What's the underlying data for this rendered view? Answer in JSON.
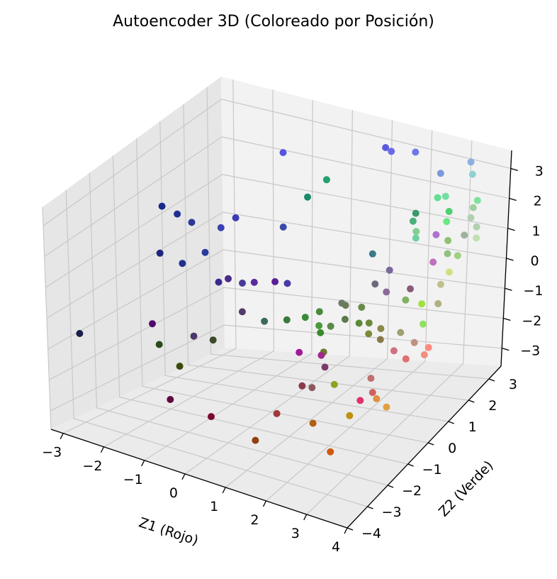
{
  "chart_data": {
    "type": "scatter",
    "title": "Autoencoder 3D (Coloreado por Posición)",
    "xlabel": "Z1 (Rojo)",
    "ylabel": "Z2 (Verde)",
    "zlabel": "",
    "xlim": [
      -3.3,
      4.0
    ],
    "ylim": [
      -4.0,
      3.6
    ],
    "zlim": [
      -3.6,
      3.6
    ],
    "xticks": [
      "−3",
      "−2",
      "−1",
      "0",
      "1",
      "2",
      "3",
      "4"
    ],
    "yticks": [
      "−4",
      "−3",
      "−2",
      "−1",
      "0",
      "1",
      "2",
      "3"
    ],
    "zticks": [
      "−3",
      "−2",
      "−1",
      "0",
      "1",
      "2",
      "3"
    ],
    "grid": true,
    "points": [
      {
        "x": -2.8,
        "y": -3.5,
        "z": -0.5,
        "color": "#1a1f4a"
      },
      {
        "x": -3.0,
        "y": 0.5,
        "z": 1.5,
        "color": "#1a2a8a"
      },
      {
        "x": -2.8,
        "y": 0.8,
        "z": 1.2,
        "color": "#1f2f90"
      },
      {
        "x": -2.9,
        "y": 0.2,
        "z": 0.3,
        "color": "#1c2680"
      },
      {
        "x": -2.5,
        "y": 0.9,
        "z": 1.0,
        "color": "#2a3a96"
      },
      {
        "x": -2.4,
        "y": 0.3,
        "z": 0.1,
        "color": "#203090"
      },
      {
        "x": -2.0,
        "y": 1.3,
        "z": 0.8,
        "color": "#3a40b0"
      },
      {
        "x": -1.8,
        "y": 1.6,
        "z": 1.0,
        "color": "#3c3cb5"
      },
      {
        "x": -2.0,
        "y": 0.6,
        "z": 0.4,
        "color": "#2a3a9a"
      },
      {
        "x": -1.5,
        "y": 0.3,
        "z": -0.2,
        "color": "#3a2a90"
      },
      {
        "x": -1.6,
        "y": 0.9,
        "z": -0.4,
        "color": "#4a2a8c"
      },
      {
        "x": -1.3,
        "y": 1.0,
        "z": -0.5,
        "color": "#4a3a9a"
      },
      {
        "x": -1.0,
        "y": 1.0,
        "z": -0.4,
        "color": "#5a2aa0"
      },
      {
        "x": -0.7,
        "y": 1.4,
        "z": -0.5,
        "color": "#5a1f96"
      },
      {
        "x": -0.5,
        "y": 1.6,
        "z": -0.6,
        "color": "#4a3aa8"
      },
      {
        "x": -1.4,
        "y": 3.0,
        "z": 2.3,
        "color": "#5555e0"
      },
      {
        "x": -1.0,
        "y": 2.3,
        "z": 0.6,
        "color": "#3a4aa8"
      },
      {
        "x": -0.5,
        "y": 2.5,
        "z": 1.5,
        "color": "#1a8a6a"
      },
      {
        "x": -0.3,
        "y": 3.0,
        "z": 1.8,
        "color": "#22a070"
      },
      {
        "x": -1.4,
        "y": -1.0,
        "z": -1.2,
        "color": "#4a3a6a"
      },
      {
        "x": -0.8,
        "y": 0.1,
        "z": -0.8,
        "color": "#553a6a"
      },
      {
        "x": -0.3,
        "y": 0.2,
        "z": -1.0,
        "color": "#3a6a5a"
      },
      {
        "x": -2.2,
        "y": -1.4,
        "z": -0.9,
        "color": "#500a70"
      },
      {
        "x": -1.7,
        "y": -2.0,
        "z": -1.1,
        "color": "#2a4a1a"
      },
      {
        "x": -1.2,
        "y": -2.0,
        "z": -1.6,
        "color": "#3a4a0a"
      },
      {
        "x": -0.7,
        "y": -1.4,
        "z": -0.9,
        "color": "#3a4a2a"
      },
      {
        "x": -1.0,
        "y": -2.8,
        "z": -2.2,
        "color": "#600a40"
      },
      {
        "x": -0.1,
        "y": -2.6,
        "z": -2.5,
        "color": "#7a0a30"
      },
      {
        "x": 0.1,
        "y": 0.5,
        "z": -1.0,
        "color": "#3a7a3a"
      },
      {
        "x": 0.4,
        "y": 0.8,
        "z": -1.0,
        "color": "#3a8a3a"
      },
      {
        "x": 0.7,
        "y": 0.9,
        "z": -0.8,
        "color": "#4a8a3a"
      },
      {
        "x": 0.8,
        "y": 0.7,
        "z": -1.1,
        "color": "#4a9a3a"
      },
      {
        "x": 1.0,
        "y": 0.4,
        "z": -1.1,
        "color": "#3a8a2a"
      },
      {
        "x": 1.2,
        "y": 0.5,
        "z": -0.9,
        "color": "#5a8a4a"
      },
      {
        "x": 1.1,
        "y": 1.2,
        "z": -0.6,
        "color": "#6a7a6a"
      },
      {
        "x": 1.3,
        "y": 1.0,
        "z": -0.5,
        "color": "#6a7a5a"
      },
      {
        "x": 1.4,
        "y": 0.8,
        "z": -0.8,
        "color": "#5a7a4a"
      },
      {
        "x": 1.6,
        "y": 1.2,
        "z": -0.6,
        "color": "#6a8a4a"
      },
      {
        "x": 1.7,
        "y": 0.9,
        "z": -0.9,
        "color": "#5a8a3a"
      },
      {
        "x": 1.9,
        "y": 1.0,
        "z": -0.9,
        "color": "#6a8a3a"
      },
      {
        "x": 2.0,
        "y": 0.8,
        "z": -1.1,
        "color": "#7a8a3a"
      },
      {
        "x": 2.2,
        "y": 1.0,
        "z": -1.0,
        "color": "#8a8a4a"
      },
      {
        "x": 2.3,
        "y": 0.8,
        "z": -1.2,
        "color": "#8a7a4a"
      },
      {
        "x": 1.3,
        "y": 0.0,
        "z": -1.4,
        "color": "#6a7a2a"
      },
      {
        "x": 0.9,
        "y": -0.4,
        "z": -1.3,
        "color": "#a01a9a"
      },
      {
        "x": 1.4,
        "y": -0.3,
        "z": -1.3,
        "color": "#a02a8a"
      },
      {
        "x": 1.6,
        "y": -0.5,
        "z": -1.5,
        "color": "#7a3a6a"
      },
      {
        "x": 1.7,
        "y": 3.5,
        "z": 1.0,
        "color": "#3a9a6a"
      },
      {
        "x": 1.9,
        "y": 3.0,
        "z": 1.1,
        "color": "#4ab07a"
      },
      {
        "x": 1.0,
        "y": 2.8,
        "z": 0.0,
        "color": "#3a7a8a"
      },
      {
        "x": 1.4,
        "y": 2.2,
        "z": -0.5,
        "color": "#6a6a7a"
      },
      {
        "x": 1.6,
        "y": 2.5,
        "z": -0.2,
        "color": "#7a6a9a"
      },
      {
        "x": 1.9,
        "y": 1.8,
        "z": -0.4,
        "color": "#8a6a9a"
      },
      {
        "x": 2.4,
        "y": 2.0,
        "z": -0.3,
        "color": "#8a5a7a"
      },
      {
        "x": 0.9,
        "y": 3.5,
        "z": 2.8,
        "color": "#5a5ae0"
      },
      {
        "x": 1.1,
        "y": 3.4,
        "z": 2.8,
        "color": "#6a6ae8"
      },
      {
        "x": 1.6,
        "y": 3.6,
        "z": 2.8,
        "color": "#6a7ae8"
      },
      {
        "x": 2.3,
        "y": 3.5,
        "z": 2.4,
        "color": "#7a9ad8"
      },
      {
        "x": 2.5,
        "y": 3.0,
        "z": 2.0,
        "color": "#60e090"
      },
      {
        "x": 2.7,
        "y": 3.0,
        "z": 2.1,
        "color": "#70e0a0"
      },
      {
        "x": 2.9,
        "y": 2.8,
        "z": 1.8,
        "color": "#50d070"
      },
      {
        "x": 3.0,
        "y": 2.5,
        "z": 1.7,
        "color": "#6ae880"
      },
      {
        "x": 2.4,
        "y": 2.2,
        "z": 1.4,
        "color": "#80d090"
      },
      {
        "x": 2.6,
        "y": 1.8,
        "z": 1.5,
        "color": "#70d0a0"
      },
      {
        "x": 3.0,
        "y": 3.6,
        "z": 2.9,
        "color": "#8ab0e0"
      },
      {
        "x": 3.1,
        "y": 3.5,
        "z": 2.6,
        "color": "#90d0d0"
      },
      {
        "x": 3.0,
        "y": 2.0,
        "z": 1.6,
        "color": "#b070d0"
      },
      {
        "x": 3.2,
        "y": 1.5,
        "z": 1.1,
        "color": "#c070c0"
      },
      {
        "x": 3.5,
        "y": 2.8,
        "z": 2.1,
        "color": "#a0d0a0"
      },
      {
        "x": 3.3,
        "y": 2.0,
        "z": 1.5,
        "color": "#90c070"
      },
      {
        "x": 3.6,
        "y": 2.5,
        "z": 2.0,
        "color": "#b0d0b0"
      },
      {
        "x": 3.7,
        "y": 2.0,
        "z": 1.8,
        "color": "#a0b0a0"
      },
      {
        "x": 3.5,
        "y": 3.0,
        "z": 2.2,
        "color": "#80e0a0"
      },
      {
        "x": 3.5,
        "y": 1.6,
        "z": 1.4,
        "color": "#90c080"
      },
      {
        "x": 3.8,
        "y": 1.5,
        "z": 1.5,
        "color": "#a0d080"
      },
      {
        "x": 3.9,
        "y": 2.2,
        "z": 2.0,
        "color": "#b0d0b0"
      },
      {
        "x": 4.0,
        "y": 2.0,
        "z": 1.8,
        "color": "#c0e0b0"
      },
      {
        "x": 3.8,
        "y": 0.7,
        "z": 1.1,
        "color": "#c0c090"
      },
      {
        "x": 3.9,
        "y": 0.9,
        "z": 1.4,
        "color": "#d0e080"
      },
      {
        "x": 3.9,
        "y": 0.4,
        "z": 0.7,
        "color": "#b0b080"
      },
      {
        "x": 3.0,
        "y": 0.6,
        "z": 0.4,
        "color": "#80b060"
      },
      {
        "x": 3.4,
        "y": 0.6,
        "z": 0.4,
        "color": "#a0e040"
      },
      {
        "x": 3.6,
        "y": 0.3,
        "z": 0.0,
        "color": "#90e060"
      },
      {
        "x": 3.2,
        "y": 0.0,
        "z": -0.2,
        "color": "#a0a070"
      },
      {
        "x": 3.5,
        "y": 0.1,
        "z": -0.5,
        "color": "#c09080"
      },
      {
        "x": 3.2,
        "y": -0.3,
        "z": -0.6,
        "color": "#d07080"
      },
      {
        "x": 3.6,
        "y": -0.5,
        "z": -0.6,
        "color": "#e07070"
      },
      {
        "x": 4.0,
        "y": -0.2,
        "z": -0.3,
        "color": "#ff8a80"
      },
      {
        "x": 4.0,
        "y": -0.4,
        "z": -0.4,
        "color": "#f09080"
      },
      {
        "x": 3.0,
        "y": -1.0,
        "z": -1.1,
        "color": "#c07070"
      },
      {
        "x": 3.2,
        "y": -1.3,
        "z": -1.3,
        "color": "#d06060"
      },
      {
        "x": 3.0,
        "y": -1.5,
        "z": -1.5,
        "color": "#e03070"
      },
      {
        "x": 3.4,
        "y": -1.5,
        "z": -1.3,
        "color": "#e09040"
      },
      {
        "x": 3.7,
        "y": -1.6,
        "z": -1.4,
        "color": "#e0a040"
      },
      {
        "x": 2.1,
        "y": -1.0,
        "z": -1.6,
        "color": "#90a020"
      },
      {
        "x": 1.6,
        "y": -1.1,
        "z": -1.8,
        "color": "#8a5a5a"
      },
      {
        "x": 1.3,
        "y": -1.0,
        "z": -1.9,
        "color": "#8a3a4a"
      },
      {
        "x": 2.8,
        "y": -1.6,
        "z": -2.0,
        "color": "#c09010"
      },
      {
        "x": 1.1,
        "y": -1.8,
        "z": -2.4,
        "color": "#a03a3a"
      },
      {
        "x": 2.0,
        "y": -1.8,
        "z": -2.4,
        "color": "#b06010"
      },
      {
        "x": 2.8,
        "y": -2.5,
        "z": -2.6,
        "color": "#d05a10"
      },
      {
        "x": 1.1,
        "y": -2.8,
        "z": -2.7,
        "color": "#904010"
      }
    ]
  }
}
